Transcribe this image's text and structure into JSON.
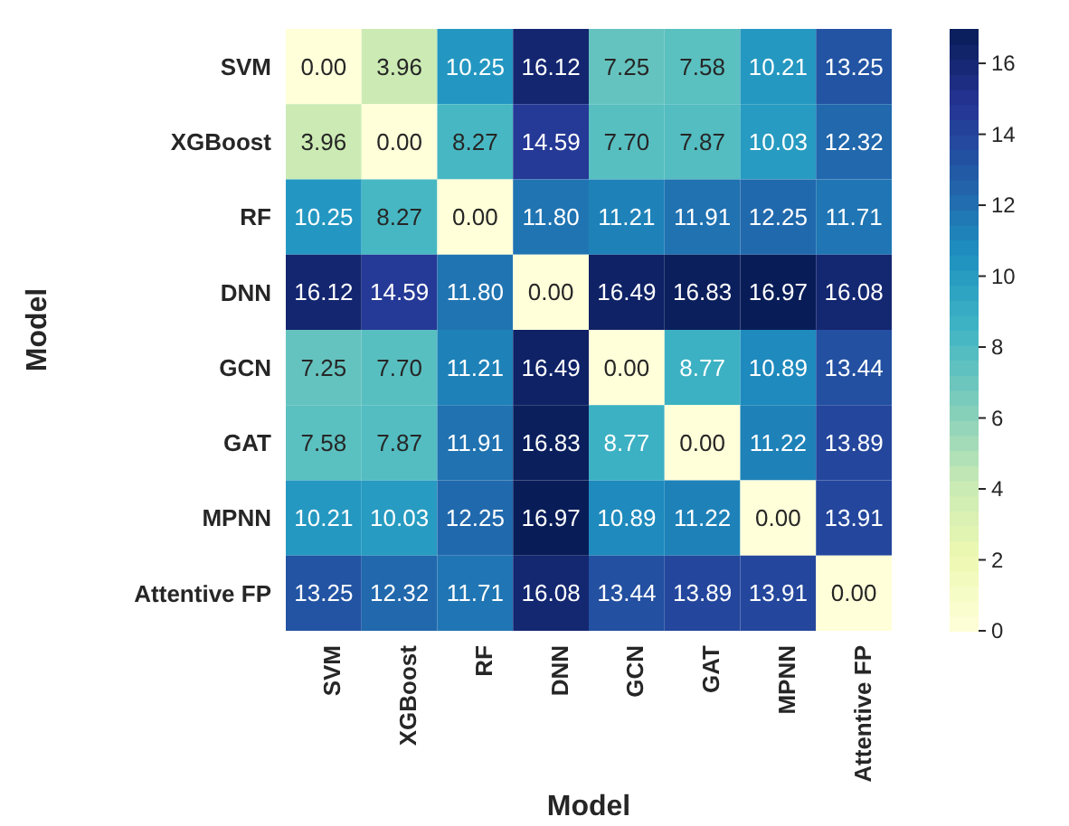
{
  "chart_data": {
    "type": "heatmap",
    "xlabel": "Model",
    "ylabel": "Model",
    "categories": [
      "SVM",
      "XGBoost",
      "RF",
      "DNN",
      "GCN",
      "GAT",
      "MPNN",
      "Attentive FP"
    ],
    "y_categories": [
      "SVM",
      "XGBoost",
      "RF",
      "DNN",
      "GCN",
      "GAT",
      "MPNN",
      "Attentive FP"
    ],
    "cells": [
      [
        0.0,
        3.96,
        10.25,
        16.12,
        7.25,
        7.58,
        10.21,
        13.25
      ],
      [
        3.96,
        0.0,
        8.27,
        14.59,
        7.7,
        7.87,
        10.03,
        12.32
      ],
      [
        10.25,
        8.27,
        0.0,
        11.8,
        11.21,
        11.91,
        12.25,
        11.71
      ],
      [
        16.12,
        14.59,
        11.8,
        0.0,
        16.49,
        16.83,
        16.97,
        16.08
      ],
      [
        7.25,
        7.7,
        11.21,
        16.49,
        0.0,
        8.77,
        10.89,
        13.44
      ],
      [
        7.58,
        7.87,
        11.91,
        16.83,
        8.77,
        0.0,
        11.22,
        13.89
      ],
      [
        10.21,
        10.03,
        12.25,
        16.97,
        10.89,
        11.22,
        0.0,
        13.91
      ],
      [
        13.25,
        12.32,
        11.71,
        16.08,
        13.44,
        13.89,
        13.91,
        0.0
      ]
    ],
    "cell_labels": [
      [
        "0.00",
        "3.96",
        "10.25",
        "16.12",
        "7.25",
        "7.58",
        "10.21",
        "13.25"
      ],
      [
        "3.96",
        "0.00",
        "8.27",
        "14.59",
        "7.70",
        "7.87",
        "10.03",
        "12.32"
      ],
      [
        "10.25",
        "8.27",
        "0.00",
        "11.80",
        "11.21",
        "11.91",
        "12.25",
        "11.71"
      ],
      [
        "16.12",
        "14.59",
        "11.80",
        "0.00",
        "16.49",
        "16.83",
        "16.97",
        "16.08"
      ],
      [
        "7.25",
        "7.70",
        "11.21",
        "16.49",
        "0.00",
        "8.77",
        "10.89",
        "13.44"
      ],
      [
        "7.58",
        "7.87",
        "11.91",
        "16.83",
        "8.77",
        "0.00",
        "11.22",
        "13.89"
      ],
      [
        "10.21",
        "10.03",
        "12.25",
        "16.97",
        "10.89",
        "11.22",
        "0.00",
        "13.91"
      ],
      [
        "13.25",
        "12.32",
        "11.71",
        "16.08",
        "13.44",
        "13.89",
        "13.91",
        "0.00"
      ]
    ],
    "data_labels": true,
    "clim": [
      0,
      16.97
    ],
    "cticks": [
      0,
      2,
      4,
      6,
      8,
      10,
      12,
      14,
      16
    ]
  }
}
